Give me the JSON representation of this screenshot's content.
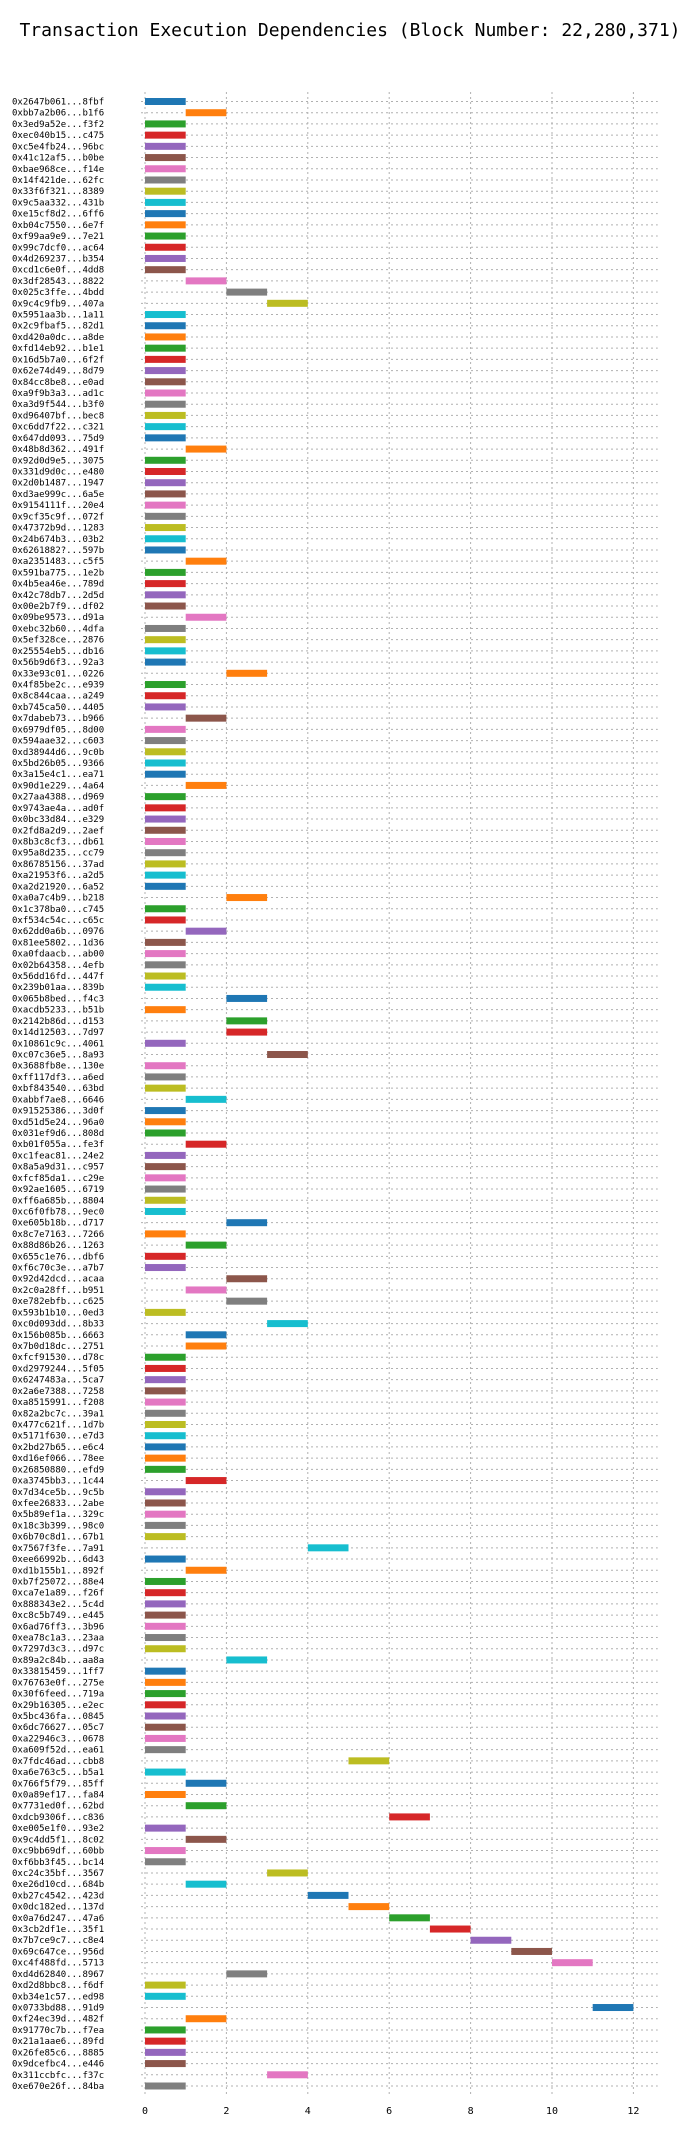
{
  "chart_data": {
    "type": "bar",
    "orientation": "horizontal",
    "title": "Transaction Execution Dependencies (Block Number: 22,280,371)",
    "xlabel": "",
    "ylabel": "",
    "xlim": [
      0,
      12.5
    ],
    "x_ticks": [
      0,
      2,
      4,
      6,
      8,
      10,
      12
    ],
    "grid": true,
    "bar_width": 1,
    "colors": [
      "#1f77b4",
      "#ff7f0e",
      "#2ca02c",
      "#d62728",
      "#9467bd",
      "#8c564b",
      "#e377c2",
      "#7f7f7f",
      "#bcbd22",
      "#17becf"
    ],
    "transactions": [
      {
        "label": "0x2647b061...8fbf",
        "start": 0
      },
      {
        "label": "0xbb7a2b06...b1f6",
        "start": 1
      },
      {
        "label": "0x3ed9a52e...f3f2",
        "start": 0
      },
      {
        "label": "0xec040b15...c475",
        "start": 0
      },
      {
        "label": "0xc5e4fb24...96bc",
        "start": 0
      },
      {
        "label": "0x41c12af5...b0be",
        "start": 0
      },
      {
        "label": "0xbae968ce...f14e",
        "start": 0
      },
      {
        "label": "0x14f421de...62fc",
        "start": 0
      },
      {
        "label": "0x33f6f321...8389",
        "start": 0
      },
      {
        "label": "0x9c5aa332...431b",
        "start": 0
      },
      {
        "label": "0xe15cf8d2...6ff6",
        "start": 0
      },
      {
        "label": "0xb04c7550...6e7f",
        "start": 0
      },
      {
        "label": "0xf99aa9e9...7e21",
        "start": 0
      },
      {
        "label": "0x99c7dcf0...ac64",
        "start": 0
      },
      {
        "label": "0x4d269237...b354",
        "start": 0
      },
      {
        "label": "0xcd1c6e0f...4dd8",
        "start": 0
      },
      {
        "label": "0x3df28543...8822",
        "start": 1
      },
      {
        "label": "0x025c3ffe...4bdd",
        "start": 2
      },
      {
        "label": "0x9c4c9fb9...407a",
        "start": 3
      },
      {
        "label": "0x5951aa3b...1a11",
        "start": 0
      },
      {
        "label": "0x2c9fbaf5...82d1",
        "start": 0
      },
      {
        "label": "0xd420a0dc...a8de",
        "start": 0
      },
      {
        "label": "0xfd14eb92...b1e1",
        "start": 0
      },
      {
        "label": "0x16d5b7a0...6f2f",
        "start": 0
      },
      {
        "label": "0x62e74d49...8d79",
        "start": 0
      },
      {
        "label": "0x84cc8be8...e0ad",
        "start": 0
      },
      {
        "label": "0xa9f9b3a3...ad1c",
        "start": 0
      },
      {
        "label": "0xa3d9f544...b3f0",
        "start": 0
      },
      {
        "label": "0xd96407bf...bec8",
        "start": 0
      },
      {
        "label": "0xc6dd7f22...c321",
        "start": 0
      },
      {
        "label": "0x647dd093...75d9",
        "start": 0
      },
      {
        "label": "0x48b8d362...491f",
        "start": 1
      },
      {
        "label": "0x92d0d9e5...3075",
        "start": 0
      },
      {
        "label": "0x331d9d0c...e480",
        "start": 0
      },
      {
        "label": "0x2d0b1487...1947",
        "start": 0
      },
      {
        "label": "0xd3ae999c...6a5e",
        "start": 0
      },
      {
        "label": "0x9154111f...20e4",
        "start": 0
      },
      {
        "label": "0x9cf35c9f...072f",
        "start": 0
      },
      {
        "label": "0x47372b9d...1283",
        "start": 0
      },
      {
        "label": "0x24b674b3...03b2",
        "start": 0
      },
      {
        "label": "0x6261882?...597b",
        "start": 0
      },
      {
        "label": "0xa2351483...c5f5",
        "start": 1
      },
      {
        "label": "0x591ba775...1e2b",
        "start": 0
      },
      {
        "label": "0x4b5ea46e...789d",
        "start": 0
      },
      {
        "label": "0x42c78db7...2d5d",
        "start": 0
      },
      {
        "label": "0x00e2b7f9...df02",
        "start": 0
      },
      {
        "label": "0x09be9573...d91a",
        "start": 1
      },
      {
        "label": "0xebc32b60...4dfa",
        "start": 0
      },
      {
        "label": "0x5ef328ce...2876",
        "start": 0
      },
      {
        "label": "0x25554eb5...db16",
        "start": 0
      },
      {
        "label": "0x56b9d6f3...92a3",
        "start": 0
      },
      {
        "label": "0x33e93c01...0226",
        "start": 2
      },
      {
        "label": "0x4f85be2c...e939",
        "start": 0
      },
      {
        "label": "0x8c844caa...a249",
        "start": 0
      },
      {
        "label": "0xb745ca50...4405",
        "start": 0
      },
      {
        "label": "0x7dabeb73...b966",
        "start": 1
      },
      {
        "label": "0x6979df05...8d00",
        "start": 0
      },
      {
        "label": "0x594aae32...c603",
        "start": 0
      },
      {
        "label": "0xd38944d6...9c0b",
        "start": 0
      },
      {
        "label": "0x5bd26b05...9366",
        "start": 0
      },
      {
        "label": "0x3a15e4c1...ea71",
        "start": 0
      },
      {
        "label": "0x90d1e229...4a64",
        "start": 1
      },
      {
        "label": "0x27aa4388...d969",
        "start": 0
      },
      {
        "label": "0x9743ae4a...ad0f",
        "start": 0
      },
      {
        "label": "0x0bc33d84...e329",
        "start": 0
      },
      {
        "label": "0x2fd8a2d9...2aef",
        "start": 0
      },
      {
        "label": "0x8b3c8cf3...db61",
        "start": 0
      },
      {
        "label": "0x95a8d235...cc79",
        "start": 0
      },
      {
        "label": "0x86785156...37ad",
        "start": 0
      },
      {
        "label": "0xa21953f6...a2d5",
        "start": 0
      },
      {
        "label": "0xa2d21920...6a52",
        "start": 0
      },
      {
        "label": "0xa0a7c4b9...b218",
        "start": 2
      },
      {
        "label": "0x1c378ba0...c745",
        "start": 0
      },
      {
        "label": "0xf534c54c...c65c",
        "start": 0
      },
      {
        "label": "0x62dd0a6b...0976",
        "start": 1
      },
      {
        "label": "0x81ee5802...1d36",
        "start": 0
      },
      {
        "label": "0xa0fdaacb...ab00",
        "start": 0
      },
      {
        "label": "0x02b64358...4efb",
        "start": 0
      },
      {
        "label": "0x56dd16fd...447f",
        "start": 0
      },
      {
        "label": "0x239b01aa...839b",
        "start": 0
      },
      {
        "label": "0x065b8bed...f4c3",
        "start": 2
      },
      {
        "label": "0xacdb5233...b51b",
        "start": 0
      },
      {
        "label": "0x2142b86d...d153",
        "start": 2
      },
      {
        "label": "0x14d12503...7d97",
        "start": 2
      },
      {
        "label": "0x10861c9c...4061",
        "start": 0
      },
      {
        "label": "0xc07c36e5...8a93",
        "start": 3
      },
      {
        "label": "0x3688fb8e...130e",
        "start": 0
      },
      {
        "label": "0xff117df3...a6ed",
        "start": 0
      },
      {
        "label": "0xbf843540...63bd",
        "start": 0
      },
      {
        "label": "0xabbf7ae8...6646",
        "start": 1
      },
      {
        "label": "0x91525386...3d0f",
        "start": 0
      },
      {
        "label": "0xd51d5e24...96a0",
        "start": 0
      },
      {
        "label": "0x031ef9d6...808d",
        "start": 0
      },
      {
        "label": "0xb01f055a...fe3f",
        "start": 1
      },
      {
        "label": "0xc1feac81...24e2",
        "start": 0
      },
      {
        "label": "0x8a5a9d31...c957",
        "start": 0
      },
      {
        "label": "0xfcf85da1...c29e",
        "start": 0
      },
      {
        "label": "0x92ae1605...6719",
        "start": 0
      },
      {
        "label": "0xff6a685b...8804",
        "start": 0
      },
      {
        "label": "0xc6f0fb78...9ec0",
        "start": 0
      },
      {
        "label": "0xe605b18b...d717",
        "start": 2
      },
      {
        "label": "0x8c7e7163...7266",
        "start": 0
      },
      {
        "label": "0x88d86b26...1263",
        "start": 1
      },
      {
        "label": "0x655c1e76...dbf6",
        "start": 0
      },
      {
        "label": "0xf6c70c3e...a7b7",
        "start": 0
      },
      {
        "label": "0x92d42dcd...acaa",
        "start": 2
      },
      {
        "label": "0x2c0a28ff...b951",
        "start": 1
      },
      {
        "label": "0xe782ebfb...c625",
        "start": 2
      },
      {
        "label": "0x593b1b10...0ed3",
        "start": 0
      },
      {
        "label": "0xc0d093dd...8b33",
        "start": 3
      },
      {
        "label": "0x156b085b...6663",
        "start": 1
      },
      {
        "label": "0x7b0d18dc...2751",
        "start": 1
      },
      {
        "label": "0xfcf91530...d78c",
        "start": 0
      },
      {
        "label": "0xd2979244...5f05",
        "start": 0
      },
      {
        "label": "0x6247483a...5ca7",
        "start": 0
      },
      {
        "label": "0x2a6e7388...7258",
        "start": 0
      },
      {
        "label": "0xa8515991...f208",
        "start": 0
      },
      {
        "label": "0x82a2bc7c...39a1",
        "start": 0
      },
      {
        "label": "0x477c621f...1d7b",
        "start": 0
      },
      {
        "label": "0x5171f630...e7d3",
        "start": 0
      },
      {
        "label": "0x2bd27b65...e6c4",
        "start": 0
      },
      {
        "label": "0xd16ef066...78ee",
        "start": 0
      },
      {
        "label": "0x26850880...efd9",
        "start": 0
      },
      {
        "label": "0xa3745bb3...1c44",
        "start": 1
      },
      {
        "label": "0x7d34ce5b...9c5b",
        "start": 0
      },
      {
        "label": "0xfee26833...2abe",
        "start": 0
      },
      {
        "label": "0x5b89ef1a...329c",
        "start": 0
      },
      {
        "label": "0x18c3b399...98c0",
        "start": 0
      },
      {
        "label": "0x6b70c8d1...67b1",
        "start": 0
      },
      {
        "label": "0x7567f3fe...7a91",
        "start": 4
      },
      {
        "label": "0xee66992b...6d43",
        "start": 0
      },
      {
        "label": "0xd1b155b1...892f",
        "start": 1
      },
      {
        "label": "0xb7f25072...88e4",
        "start": 0
      },
      {
        "label": "0xca7e1a89...f26f",
        "start": 0
      },
      {
        "label": "0x888343e2...5c4d",
        "start": 0
      },
      {
        "label": "0xc8c5b749...e445",
        "start": 0
      },
      {
        "label": "0x6ad76ff3...3b96",
        "start": 0
      },
      {
        "label": "0xea78c1a3...23aa",
        "start": 0
      },
      {
        "label": "0x7297d3c3...d97c",
        "start": 0
      },
      {
        "label": "0x89a2c84b...aa8a",
        "start": 2
      },
      {
        "label": "0x33815459...1ff7",
        "start": 0
      },
      {
        "label": "0x76763e0f...275e",
        "start": 0
      },
      {
        "label": "0x30f6feed...719a",
        "start": 0
      },
      {
        "label": "0x29b16305...e2ec",
        "start": 0
      },
      {
        "label": "0x5bc436fa...0845",
        "start": 0
      },
      {
        "label": "0x6dc76627...05c7",
        "start": 0
      },
      {
        "label": "0xa22946c3...0678",
        "start": 0
      },
      {
        "label": "0xa609f52d...ea61",
        "start": 0
      },
      {
        "label": "0x7fdc46ad...cbb8",
        "start": 5
      },
      {
        "label": "0xa6e763c5...b5a1",
        "start": 0
      },
      {
        "label": "0x766f5f79...85ff",
        "start": 1
      },
      {
        "label": "0x0a89ef17...fa84",
        "start": 0
      },
      {
        "label": "0x7731ed0f...62bd",
        "start": 1
      },
      {
        "label": "0xdcb9306f...c836",
        "start": 6
      },
      {
        "label": "0xe005e1f0...93e2",
        "start": 0
      },
      {
        "label": "0x9c4dd5f1...8c02",
        "start": 1
      },
      {
        "label": "0xc9bb69df...60bb",
        "start": 0
      },
      {
        "label": "0xf6bb3f45...bc14",
        "start": 0
      },
      {
        "label": "0xc24c35bf...3567",
        "start": 3
      },
      {
        "label": "0xe26d10cd...684b",
        "start": 1
      },
      {
        "label": "0xb27c4542...423d",
        "start": 4
      },
      {
        "label": "0x0dc182ed...137d",
        "start": 5
      },
      {
        "label": "0x0a76d247...47a6",
        "start": 6
      },
      {
        "label": "0x3cb2df1e...35f1",
        "start": 7
      },
      {
        "label": "0x7b7ce9c7...c8e4",
        "start": 8
      },
      {
        "label": "0x69c647ce...956d",
        "start": 9
      },
      {
        "label": "0xc4f488fd...5713",
        "start": 10
      },
      {
        "label": "0xd4d62840...8967",
        "start": 2
      },
      {
        "label": "0xd2d8bbc8...f6df",
        "start": 0
      },
      {
        "label": "0xb34e1c57...ed98",
        "start": 0
      },
      {
        "label": "0x0733bd88...91d9",
        "start": 11
      },
      {
        "label": "0xf24ec39d...482f",
        "start": 1
      },
      {
        "label": "0x91770c7b...f7ea",
        "start": 0
      },
      {
        "label": "0x21a1aae6...89fd",
        "start": 0
      },
      {
        "label": "0x26fe85c6...8885",
        "start": 0
      },
      {
        "label": "0x9dcefbc4...e446",
        "start": 0
      },
      {
        "label": "0x311ccbfc...f37c",
        "start": 3
      },
      {
        "label": "0xe670e26f...84ba",
        "start": 0
      }
    ]
  }
}
